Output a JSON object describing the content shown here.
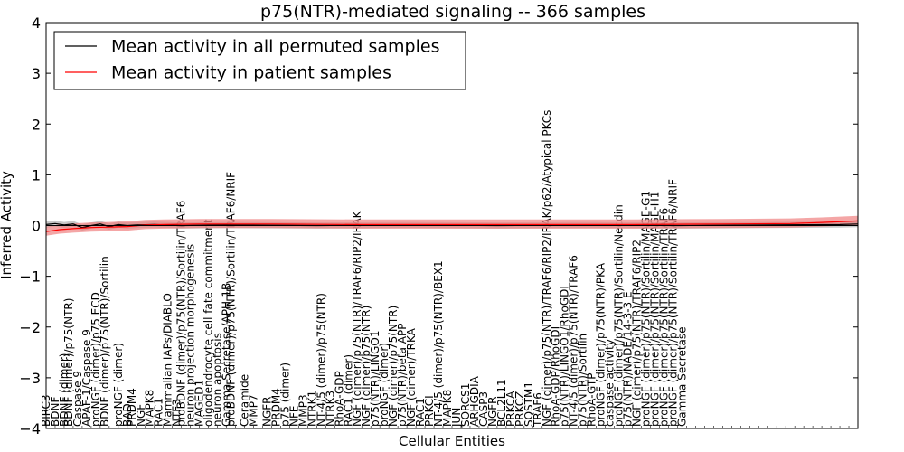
{
  "chart_data": {
    "type": "line",
    "title": "p75(NTR)-mediated signaling -- 366 samples",
    "xlabel": "Cellular Entities",
    "ylabel": "Inferred Activity",
    "ylim": [
      -4,
      4
    ],
    "yticks": [
      -4,
      -3,
      -2,
      -1,
      0,
      1,
      2,
      3,
      4
    ],
    "grid": false,
    "legend_position": "top-left",
    "series": [
      {
        "name": "Mean activity in all permuted samples",
        "color": "#000000",
        "band_color": "#b0b0b0",
        "points": [
          [
            0,
            0.02
          ],
          [
            2,
            0.04
          ],
          [
            4,
            0.01
          ],
          [
            6,
            0.03
          ],
          [
            8,
            -0.04
          ],
          [
            10,
            0.0
          ],
          [
            12,
            0.03
          ],
          [
            14,
            -0.02
          ],
          [
            16,
            0.02
          ],
          [
            18,
            0.0
          ],
          [
            20,
            0.01
          ],
          [
            24,
            0.02
          ],
          [
            30,
            0.0
          ],
          [
            40,
            0.01
          ],
          [
            60,
            0.0
          ],
          [
            80,
            0.01
          ],
          [
            100,
            0.0
          ],
          [
            120,
            0.01
          ],
          [
            140,
            0.0
          ],
          [
            160,
            0.01
          ],
          [
            176,
            0.02
          ],
          [
            180,
            0.03
          ]
        ],
        "band": [
          0.06,
          0.06
        ]
      },
      {
        "name": "Mean activity in patient samples",
        "color": "#ff0000",
        "band_color": "#f08080",
        "points": [
          [
            0,
            -0.12
          ],
          [
            3,
            -0.08
          ],
          [
            6,
            -0.06
          ],
          [
            10,
            -0.04
          ],
          [
            14,
            -0.03
          ],
          [
            18,
            -0.02
          ],
          [
            22,
            0.01
          ],
          [
            26,
            0.02
          ],
          [
            34,
            0.03
          ],
          [
            50,
            0.03
          ],
          [
            70,
            0.02
          ],
          [
            90,
            0.02
          ],
          [
            110,
            0.02
          ],
          [
            130,
            0.02
          ],
          [
            150,
            0.03
          ],
          [
            165,
            0.04
          ],
          [
            172,
            0.06
          ],
          [
            180,
            0.09
          ]
        ],
        "band": [
          0.1,
          0.08
        ]
      }
    ],
    "x_count": 181,
    "entities": [
      {
        "i": 0,
        "label": "BIRC3"
      },
      {
        "i": 2,
        "label": "BDNF"
      },
      {
        "i": 4,
        "label": "BDNF (dimer)"
      },
      {
        "i": 5,
        "label": "BDNF (dimer)/p75(NTR)"
      },
      {
        "i": 7,
        "label": "Caspase 9"
      },
      {
        "i": 9,
        "label": "APAF-1/Caspase 9"
      },
      {
        "i": 11,
        "label": "proNGF (dimer)/p75 ECD"
      },
      {
        "i": 13,
        "label": "BDNF (dimer)/p75(NTR)/Sortilin"
      },
      {
        "i": 16,
        "label": "proNGF (dimer)"
      },
      {
        "i": 18,
        "label": "BAD"
      },
      {
        "i": 19,
        "label": "PRDM4"
      },
      {
        "i": 21,
        "label": "NGF"
      },
      {
        "i": 23,
        "label": "MAPK8"
      },
      {
        "i": 25,
        "label": "RAC1"
      },
      {
        "i": 27,
        "label": "Mammalian IAPs/DIABLO"
      },
      {
        "i": 29,
        "label": "NTF3"
      },
      {
        "i": 30,
        "label": "proBDNF (dimer)/p75(NTR)/Sortilin/TRAF6"
      },
      {
        "i": 32,
        "label": "neuron projection morphogenesis"
      },
      {
        "i": 34,
        "label": "MAGED1"
      },
      {
        "i": 36,
        "label": "oligodendrocyte cell fate commitment"
      },
      {
        "i": 38,
        "label": "neuron apoptosis"
      },
      {
        "i": 40,
        "label": "Gamma Secretase/APH-1B"
      },
      {
        "i": 41,
        "label": "proBDNF (dimer)/p75(NTR)/Sortilin/TRAF6/NRIF"
      },
      {
        "i": 44,
        "label": "Ceramide"
      },
      {
        "i": 46,
        "label": "MMP7"
      },
      {
        "i": 49,
        "label": "NGFR"
      },
      {
        "i": 51,
        "label": "PRDM4"
      },
      {
        "i": 53,
        "label": "p75 (dimer)"
      },
      {
        "i": 55,
        "label": "NFE"
      },
      {
        "i": 57,
        "label": "MMP3"
      },
      {
        "i": 59,
        "label": "NTRK1"
      },
      {
        "i": 61,
        "label": "NT-4/5 (dimer)/p75(NTR)"
      },
      {
        "i": 63,
        "label": "NTRK3"
      },
      {
        "i": 65,
        "label": "RhoA-GDP"
      },
      {
        "i": 67,
        "label": "RAC1 (dimer)"
      },
      {
        "i": 69,
        "label": "NGF (dimer)/p75(NTR)/TRAF6/RIP2/IRAK"
      },
      {
        "i": 71,
        "label": "NGF (dimer)/p75(NTR)"
      },
      {
        "i": 73,
        "label": "p75(NTR)/LINGO1"
      },
      {
        "i": 75,
        "label": "proNGF (dimer)"
      },
      {
        "i": 77,
        "label": "NGF (dimer)/p75(NTR)"
      },
      {
        "i": 79,
        "label": "p75(NTR)/beta APP"
      },
      {
        "i": 81,
        "label": "NGF (dimer)/TRKA"
      },
      {
        "i": 83,
        "label": "RAC1"
      },
      {
        "i": 85,
        "label": "PRKCI"
      },
      {
        "i": 87,
        "label": "NT-4/5 (dimer)/p75(NTR)/BEX1"
      },
      {
        "i": 89,
        "label": "MAPK8"
      },
      {
        "i": 91,
        "label": "JUN"
      },
      {
        "i": 93,
        "label": "SORCS1"
      },
      {
        "i": 95,
        "label": "ARHGDIA"
      },
      {
        "i": 97,
        "label": "CASP3"
      },
      {
        "i": 99,
        "label": "NGFR"
      },
      {
        "i": 101,
        "label": "BCL2L11"
      },
      {
        "i": 103,
        "label": "PRKCA"
      },
      {
        "i": 105,
        "label": "PRKCZ"
      },
      {
        "i": 107,
        "label": "SQSTM1"
      },
      {
        "i": 109,
        "label": "TRAF6"
      },
      {
        "i": 111,
        "label": "NGF (dimer)/p75(NTR)/TRAF6/RIP2/IRAK/p62/Atypical PKCs"
      },
      {
        "i": 113,
        "label": "RhoA-GDP/RhoGDI"
      },
      {
        "i": 115,
        "label": "p75(NTR)/LINGO1/RhoGDI"
      },
      {
        "i": 117,
        "label": "NT-4/5 (dimer)/p75(NTR)/TRAF6"
      },
      {
        "i": 119,
        "label": "p75(NTR)/Sortilin"
      },
      {
        "i": 121,
        "label": "RhoA-GTP"
      },
      {
        "i": 123,
        "label": "proNGF (dimer)/p75(NTR)/PKA"
      },
      {
        "i": 125,
        "label": "caspase activity"
      },
      {
        "i": 127,
        "label": "proNGF (dimer)/p75(NTR)/Sortilin/Necdin"
      },
      {
        "i": 129,
        "label": "p75(NTR)/NADE/14-3-3 E"
      },
      {
        "i": 131,
        "label": "NGF (dimer)/p75(NTR)/TRAF6/RIP2"
      },
      {
        "i": 133,
        "label": "proNGF (dimer)/p75(NTR)/Sortilin/MAGE-G1"
      },
      {
        "i": 135,
        "label": "proNGF (dimer)/p75(NTR)/Sortilin/MAGE-H1"
      },
      {
        "i": 137,
        "label": "proNGF (dimer)/p75(NTR)/Sortilin/TRAF6"
      },
      {
        "i": 139,
        "label": "proNGF (dimer)/p75(NTR)/Sortilin/TRAF6/NRIF"
      },
      {
        "i": 141,
        "label": "Gamma Secretase"
      }
    ]
  }
}
